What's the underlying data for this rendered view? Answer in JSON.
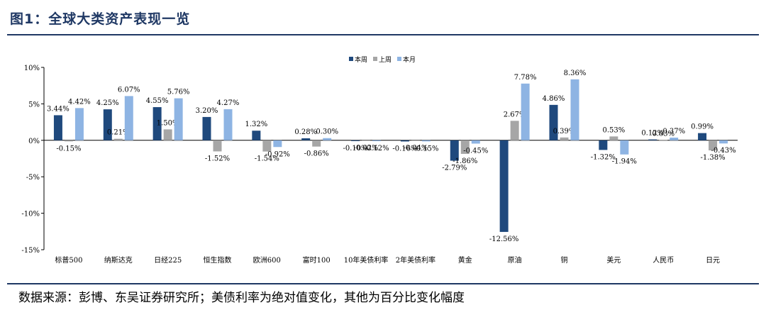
{
  "title": "图1：全球大类资产表现一览",
  "source": "数据来源：彭博、东吴证券研究所；美债利率为绝对值变化，其他为百分比变化幅度",
  "colors": {
    "series1": "#1f497d",
    "series2": "#a6a6a6",
    "series3": "#8eb4e3",
    "rule": "#1f3864"
  },
  "chart_data": {
    "type": "bar",
    "title": "",
    "xlabel": "",
    "ylabel": "",
    "ylim": [
      -15,
      10
    ],
    "yticks": [
      10,
      5,
      0,
      -5,
      -10,
      -15
    ],
    "ytick_labels": [
      "10%",
      "5%",
      "0%",
      "-5%",
      "-10%",
      "-15%"
    ],
    "grid": false,
    "legend_position": "top-center",
    "categories": [
      "标普500",
      "纳斯达克",
      "日经225",
      "恒生指数",
      "欧洲600",
      "富时100",
      "10年美债利率",
      "2年美债利率",
      "黄金",
      "原油",
      "铜",
      "美元",
      "人民币",
      "日元"
    ],
    "series": [
      {
        "name": "本周",
        "values": [
          3.44,
          4.25,
          4.55,
          3.2,
          1.32,
          0.28,
          -0.1,
          -0.16,
          -2.79,
          -12.56,
          4.86,
          -1.32,
          0.12,
          0.99
        ],
        "labels": [
          "3.44%",
          "4.25%",
          "4.55%",
          "3.20%",
          "1.32%",
          "0.28%",
          "-0.10%",
          "-0.16%",
          "-2.79%",
          "-12.56%",
          "4.86%",
          "-1.32%",
          "0.12%",
          "0.99%"
        ]
      },
      {
        "name": "上周",
        "values": [
          -0.15,
          0.21,
          1.5,
          -1.52,
          -1.54,
          -0.86,
          -0.02,
          -0.04,
          -1.86,
          2.67,
          0.39,
          0.53,
          0.03,
          -1.38
        ],
        "labels": [
          "-0.15%",
          "0.21%",
          "1.50%",
          "-1.52%",
          "-1.54%",
          "-0.86%",
          "-0.02%",
          "-0.04%",
          "-1.86%",
          "2.67%",
          "0.39%",
          "0.53%",
          "0.03%",
          "-1.38%"
        ]
      },
      {
        "name": "本月",
        "values": [
          4.42,
          6.07,
          5.76,
          4.27,
          -0.92,
          0.3,
          -0.12,
          -0.15,
          -0.45,
          7.78,
          8.36,
          -1.94,
          0.37,
          -0.43
        ],
        "labels": [
          "4.42%",
          "6.07%",
          "5.76%",
          "4.27%",
          "-0.92%",
          "0.30%",
          "-0.12%",
          "-0.15%",
          "-0.45%",
          "7.78%",
          "8.36%",
          "-1.94%",
          "0.37%",
          "-0.43%"
        ]
      }
    ]
  }
}
